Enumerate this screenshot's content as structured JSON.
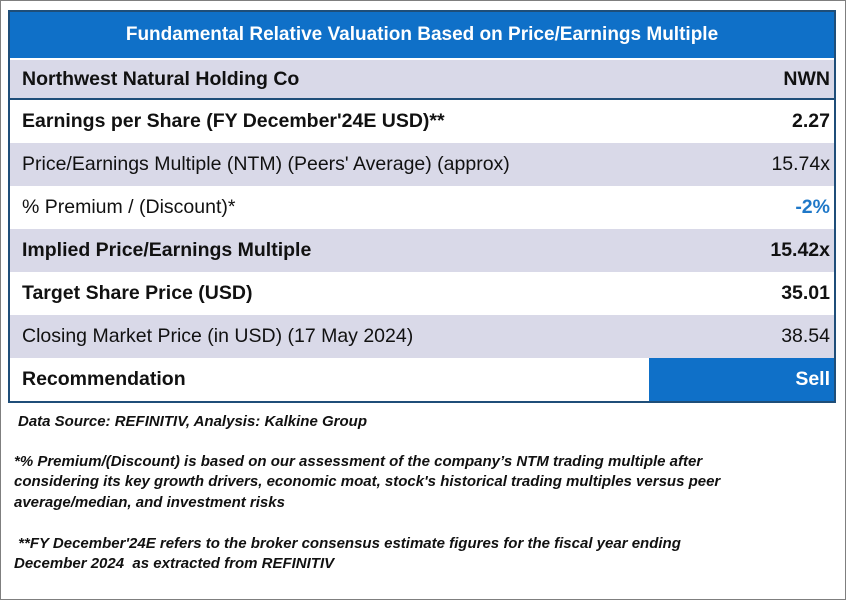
{
  "title": "Fundamental Relative Valuation Based on Price/Earnings Multiple",
  "company": {
    "name": "Northwest Natural Holding Co",
    "ticker": "NWN"
  },
  "rows": [
    {
      "label": "Earnings per Share (FY December'24E USD)**",
      "value": "2.27"
    },
    {
      "label": "Price/Earnings Multiple (NTM)  (Peers' Average) (approx)",
      "value": "15.74x"
    },
    {
      "label": "% Premium / (Discount)*",
      "value": "-2%"
    },
    {
      "label": "Implied Price/Earnings Multiple",
      "value": "15.42x"
    },
    {
      "label": "Target Share Price (USD)",
      "value": "35.01"
    },
    {
      "label": "Closing Market Price (in USD) (17 May 2024)",
      "value": "38.54"
    },
    {
      "label": "Recommendation",
      "value": "Sell"
    }
  ],
  "notes": {
    "source": "Data Source: REFINITIV, Analysis: Kalkine Group",
    "premium_line1": "*% Premium/(Discount) is based on our assessment of the company’s NTM trading multiple after",
    "premium_line2": "considering its key growth drivers, economic moat, stock's historical trading multiples versus peer",
    "premium_line3": "average/median, and investment risks",
    "fy_line1": " **FY December'24E refers to the broker consensus estimate figures for the fiscal year ending",
    "fy_line2": "December 2024  as extracted from REFINITIV"
  },
  "colors": {
    "title_bg": "#0f70c8",
    "row_shade": "#d9d9e8",
    "discount_text": "#1f78c8"
  }
}
